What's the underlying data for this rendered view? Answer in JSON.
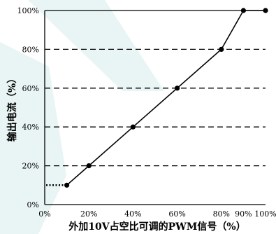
{
  "chart_data": {
    "type": "line",
    "title": "",
    "xlabel": "外加10V占空比可调的PWM信号（%）",
    "ylabel": "输出电流（%）",
    "xlim": [
      0,
      100
    ],
    "ylim": [
      0,
      100
    ],
    "x_ticks": [
      "0%",
      "20%",
      "40%",
      "60%",
      "80%",
      "90%",
      "100%"
    ],
    "x_tick_values": [
      0,
      20,
      40,
      60,
      80,
      90,
      100
    ],
    "y_ticks": [
      "0%",
      "20%",
      "40%",
      "60%",
      "80%",
      "100%"
    ],
    "y_tick_values": [
      0,
      20,
      40,
      60,
      80,
      100
    ],
    "grid": "horizontal-dashed",
    "series": [
      {
        "x": [
          10,
          20,
          40,
          60,
          80,
          90,
          100
        ],
        "y": [
          10,
          20,
          40,
          60,
          80,
          100,
          100
        ]
      }
    ],
    "lead_in_dotted": {
      "x": [
        0,
        10
      ],
      "y": [
        10,
        10
      ]
    },
    "colors": {
      "line": "#000000",
      "background": "#ffffff",
      "watermark": "#e3f3f1"
    }
  }
}
